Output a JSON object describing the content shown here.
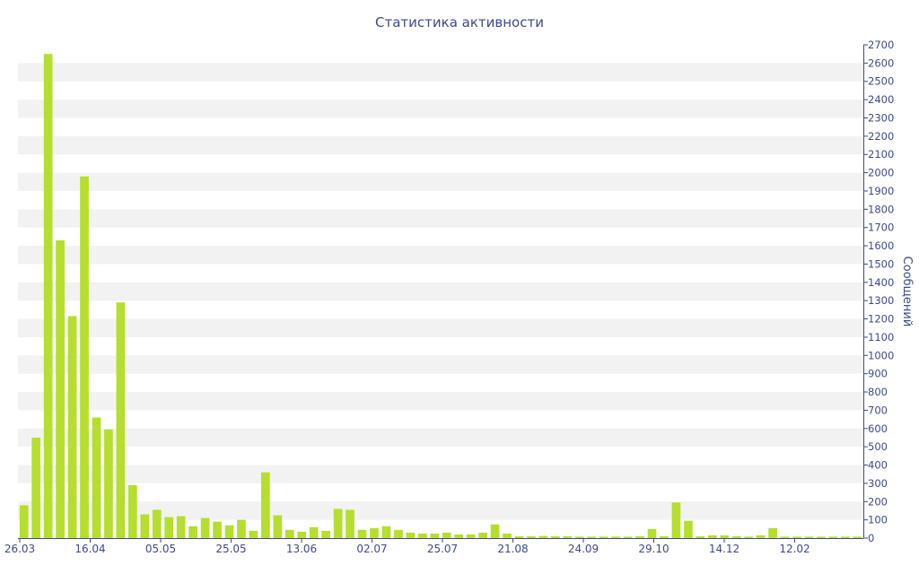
{
  "chart_data": {
    "type": "bar",
    "title": "Статистика активности",
    "xlabel": "",
    "ylabel": "Сообщений",
    "ylim": [
      0,
      2700
    ],
    "yticks": [
      0,
      100,
      200,
      300,
      400,
      500,
      600,
      700,
      800,
      900,
      1000,
      1100,
      1200,
      1300,
      1400,
      1500,
      1600,
      1700,
      1800,
      1900,
      2000,
      2100,
      2200,
      2300,
      2400,
      2500,
      2600,
      2700
    ],
    "xtick_labels": [
      "26.03",
      "16.04",
      "05.05",
      "25.05",
      "13.06",
      "02.07",
      "25.07",
      "21.08",
      "24.09",
      "29.10",
      "14.12",
      "12.02"
    ],
    "y_axis_side": "right",
    "grid": "horizontal bands",
    "values": [
      180,
      550,
      2650,
      1630,
      1215,
      1980,
      660,
      595,
      1290,
      290,
      130,
      155,
      115,
      120,
      65,
      110,
      90,
      70,
      100,
      40,
      360,
      125,
      45,
      35,
      60,
      40,
      160,
      155,
      45,
      55,
      65,
      45,
      30,
      25,
      25,
      30,
      20,
      20,
      30,
      75,
      25,
      10,
      10,
      12,
      10,
      10,
      8,
      8,
      8,
      8,
      8,
      10,
      50,
      10,
      195,
      95,
      10,
      15,
      15,
      10,
      8,
      15,
      55,
      8,
      8,
      8,
      8,
      8,
      8,
      8
    ],
    "colors": {
      "bar": "#b5de2e",
      "text": "#3d4a8c",
      "band": "#f2f2f2",
      "axis": "#3d4a8c"
    }
  }
}
